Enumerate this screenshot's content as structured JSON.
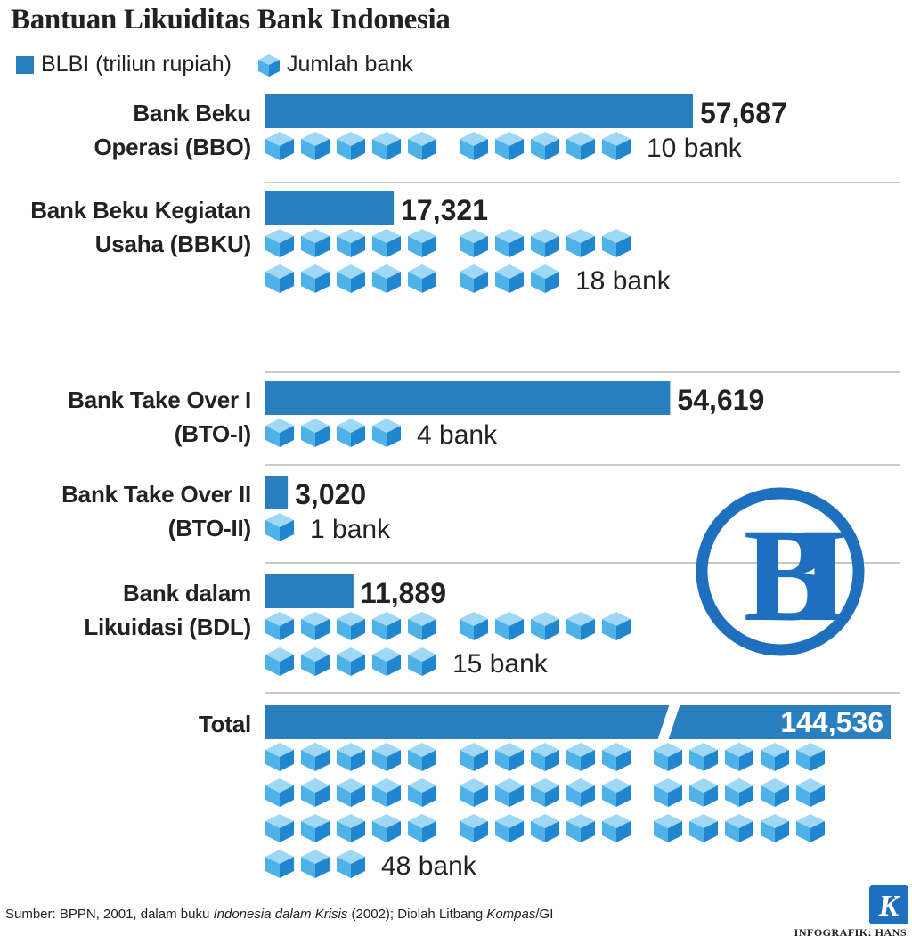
{
  "title": "Bantuan Likuiditas Bank Indonesia",
  "legend": {
    "blbi": "BLBI (triliun rupiah)",
    "banks": "Jumlah bank"
  },
  "chart_data": {
    "type": "bar",
    "title": "Bantuan Likuiditas Bank Indonesia",
    "value_unit": "triliun rupiah",
    "series": [
      {
        "name": "BLBI (triliun rupiah)",
        "values": [
          57687,
          17321,
          54619,
          3020,
          11889,
          144536
        ]
      },
      {
        "name": "Jumlah bank",
        "values": [
          10,
          18,
          4,
          1,
          15,
          48
        ]
      }
    ],
    "rows": [
      {
        "label_line1": "Bank Beku",
        "label_line2": "Operasi (BBO)",
        "value": 57687,
        "value_label": "57,687",
        "banks": 10,
        "bank_label": "10 bank"
      },
      {
        "label_line1": "Bank Beku Kegiatan",
        "label_line2": "Usaha (BBKU)",
        "value": 17321,
        "value_label": "17,321",
        "banks": 18,
        "bank_label": "18 bank"
      },
      {
        "label_line1": "Bank Take Over I",
        "label_line2": "(BTO-I)",
        "value": 54619,
        "value_label": "54,619",
        "banks": 4,
        "bank_label": "4 bank"
      },
      {
        "label_line1": "Bank Take Over II",
        "label_line2": "(BTO-II)",
        "value": 3020,
        "value_label": "3,020",
        "banks": 1,
        "bank_label": "1 bank"
      },
      {
        "label_line1": "Bank dalam",
        "label_line2": "Likuidasi (BDL)",
        "value": 11889,
        "value_label": "11,889",
        "banks": 15,
        "bank_label": "15 bank"
      },
      {
        "label_line1": "Total",
        "label_line2": "",
        "value": 144536,
        "value_label": "144,536",
        "banks": 48,
        "bank_label": "48 bank",
        "broken_axis": true
      }
    ],
    "scale_max": 62500
  },
  "source": "Sumber: BPPN, 2001, dalam buku Indonesia dalam Krisis (2002); Diolah Litbang Kompas/GI",
  "credit": "INFOGRAFIK: HANS",
  "logo_text": "BI",
  "kompas_logo_text": "K",
  "colors": {
    "bar": "#2a7fc1",
    "cube_top": "#9fd8f5",
    "cube_left": "#4eb2e8",
    "cube_right": "#1f86cf",
    "divider": "#c9c9c9",
    "logo": "#1f6fbf"
  }
}
